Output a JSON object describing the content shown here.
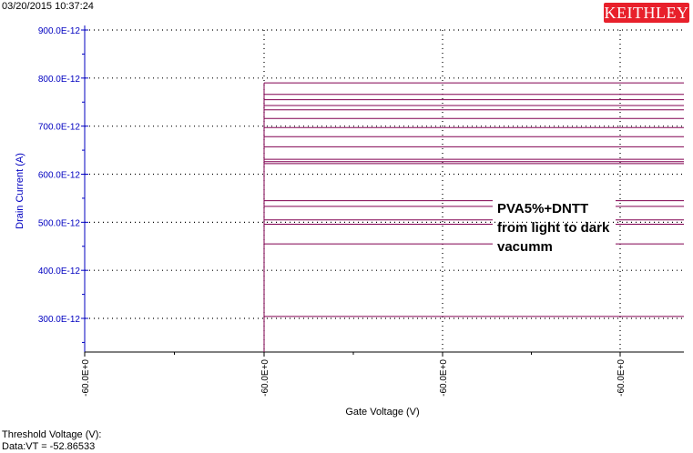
{
  "header": {
    "timestamp": "03/20/2015 10:37:24",
    "logo_text": "KEITHLEY",
    "logo_color": "#e8202b"
  },
  "footer": {
    "line1": "Threshold Voltage (V):",
    "line2": "Data:VT = -52.86533"
  },
  "chart_data": {
    "type": "line",
    "xlabel": "Gate Voltage (V)",
    "ylabel": "Drain Current (A)",
    "annotation": [
      "PVA5%+DNTT",
      "from light to dark",
      "vacumm"
    ],
    "x_tick_labels": [
      "-60.0E+0",
      "-60.0E+0",
      "-60.0E+0",
      "-60.0E+0"
    ],
    "y_ticks": [
      {
        "value": 3e-10,
        "label": "300.0E-12"
      },
      {
        "value": 4e-10,
        "label": "400.0E-12"
      },
      {
        "value": 5e-10,
        "label": "500.0E-12"
      },
      {
        "value": 6e-10,
        "label": "600.0E-12"
      },
      {
        "value": 7e-10,
        "label": "700.0E-12"
      },
      {
        "value": 8e-10,
        "label": "800.0E-12"
      },
      {
        "value": 9e-10,
        "label": "900.0E-12"
      }
    ],
    "ylim": [
      2.3e-10,
      9e-10
    ],
    "grid": true,
    "series_color": "#800050",
    "axis_color": "#0000c0",
    "vertical_trace": {
      "x": -60.0,
      "y_from": 2.3e-10,
      "y_to": 7.9e-10
    },
    "levels": [
      7.9e-10,
      7.66e-10,
      7.55e-10,
      7.43e-10,
      7.34e-10,
      7.16e-10,
      6.97e-10,
      6.78e-10,
      6.57e-10,
      6.31e-10,
      6.26e-10,
      6.22e-10,
      5.45e-10,
      5.33e-10,
      5.05e-10,
      4.96e-10,
      4.55e-10,
      3.04e-10
    ]
  }
}
